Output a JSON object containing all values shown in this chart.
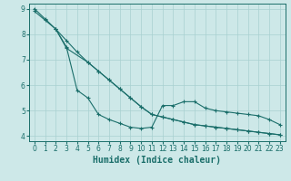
{
  "xlabel": "Humidex (Indice chaleur)",
  "xlim": [
    -0.5,
    23.5
  ],
  "ylim": [
    3.8,
    9.2
  ],
  "yticks": [
    4,
    5,
    6,
    7,
    8,
    9
  ],
  "xticks": [
    0,
    1,
    2,
    3,
    4,
    5,
    6,
    7,
    8,
    9,
    10,
    11,
    12,
    13,
    14,
    15,
    16,
    17,
    18,
    19,
    20,
    21,
    22,
    23
  ],
  "bg_color": "#cde8e8",
  "grid_color": "#a8d0d0",
  "line_color": "#1a6e6a",
  "line1_x": [
    0,
    1,
    2,
    3,
    4,
    5,
    6,
    7,
    8,
    9,
    10,
    11,
    12,
    13,
    14,
    15,
    16,
    17,
    18,
    19,
    20,
    21,
    22,
    23
  ],
  "line1_y": [
    8.9,
    8.55,
    8.2,
    7.5,
    5.8,
    5.5,
    4.85,
    4.65,
    4.5,
    4.35,
    4.3,
    4.35,
    5.2,
    5.2,
    5.35,
    5.35,
    5.1,
    5.0,
    4.95,
    4.9,
    4.85,
    4.8,
    4.65,
    4.45
  ],
  "line2_x": [
    0,
    1,
    2,
    3,
    4,
    5,
    6,
    7,
    8,
    9,
    10,
    11,
    12,
    13,
    14,
    15,
    16,
    17,
    18,
    19,
    20,
    21,
    22,
    23
  ],
  "line2_y": [
    9.0,
    8.6,
    8.2,
    7.75,
    7.3,
    6.9,
    6.55,
    6.2,
    5.85,
    5.5,
    5.15,
    4.85,
    4.75,
    4.65,
    4.55,
    4.45,
    4.4,
    4.35,
    4.3,
    4.25,
    4.2,
    4.15,
    4.1,
    4.05
  ],
  "line3_x": [
    2,
    3,
    5,
    6,
    7,
    8,
    9,
    10,
    11,
    12,
    13,
    14,
    15,
    16,
    17,
    18,
    19,
    20,
    21,
    22,
    23
  ],
  "line3_y": [
    8.2,
    7.45,
    6.9,
    6.55,
    6.2,
    5.85,
    5.5,
    5.15,
    4.85,
    4.75,
    4.65,
    4.55,
    4.45,
    4.4,
    4.35,
    4.3,
    4.25,
    4.2,
    4.15,
    4.1,
    4.05
  ],
  "tick_fontsize": 5.5,
  "label_fontsize": 7.0
}
